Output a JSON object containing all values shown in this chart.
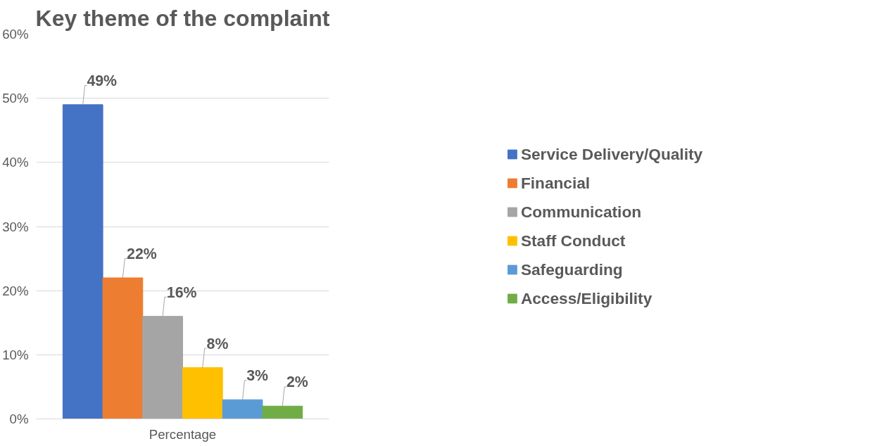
{
  "chart_data": {
    "type": "bar",
    "title": "Key theme of the complaint",
    "categories": [
      "Percentage"
    ],
    "series": [
      {
        "name": "Service Delivery/Quality",
        "color": "#4472c4",
        "values": [
          49
        ],
        "value_labels": [
          "49%"
        ]
      },
      {
        "name": "Financial",
        "color": "#ed7d31",
        "values": [
          22
        ],
        "value_labels": [
          "22%"
        ]
      },
      {
        "name": "Communication",
        "color": "#a5a5a5",
        "values": [
          16
        ],
        "value_labels": [
          "16%"
        ]
      },
      {
        "name": "Staff Conduct",
        "color": "#ffc000",
        "values": [
          8
        ],
        "value_labels": [
          "8%"
        ]
      },
      {
        "name": "Safeguarding",
        "color": "#5b9bd5",
        "values": [
          3
        ],
        "value_labels": [
          "3%"
        ]
      },
      {
        "name": "Access/Eligibility",
        "color": "#70ad47",
        "values": [
          2
        ],
        "value_labels": [
          "2%"
        ]
      }
    ],
    "ylim": [
      0,
      60
    ],
    "yticks": [
      {
        "value": 0,
        "label": "0%"
      },
      {
        "value": 10,
        "label": "10%"
      },
      {
        "value": 20,
        "label": "20%"
      },
      {
        "value": 30,
        "label": "30%"
      },
      {
        "value": 40,
        "label": "40%"
      },
      {
        "value": 50,
        "label": "50%"
      },
      {
        "value": 60,
        "label": "60%"
      }
    ],
    "grid": "y",
    "legend": "right"
  }
}
